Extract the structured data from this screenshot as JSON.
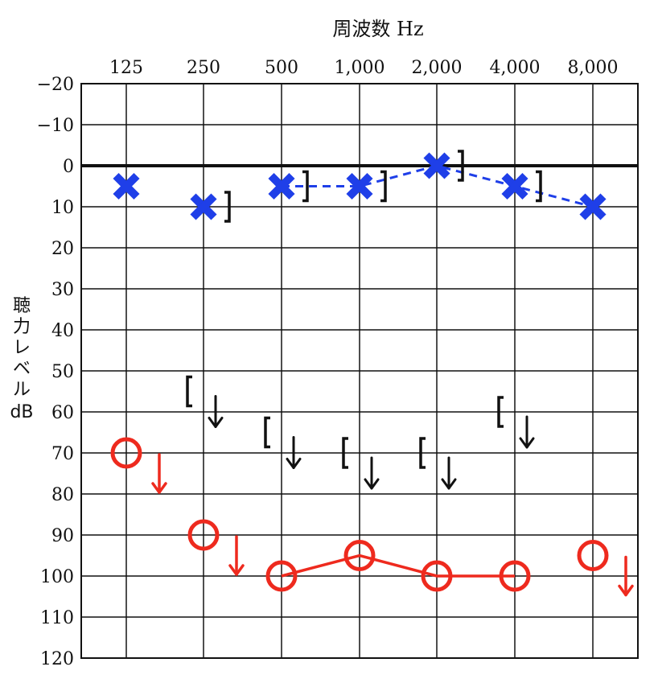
{
  "chart_data": {
    "type": "scatter",
    "title": "",
    "xlabel": "周波数 Hz",
    "ylabel": "聴力レベル",
    "ylabel_unit": "dB",
    "x_categories": [
      "125",
      "250",
      "500",
      "1,000",
      "2,000",
      "4,000",
      "8,000"
    ],
    "y_ticks": [
      "−20",
      "−10",
      "0",
      "10",
      "20",
      "30",
      "40",
      "50",
      "60",
      "70",
      "80",
      "90",
      "100",
      "110",
      "120"
    ],
    "ylim": [
      -20,
      120
    ],
    "y_inverted": true,
    "grid": true,
    "series": [
      {
        "symbol": "X",
        "color": "#1f3fe8",
        "line": "dashed",
        "points": [
          {
            "x": "125",
            "y": 5,
            "connected": false
          },
          {
            "x": "250",
            "y": 10,
            "connected": false
          },
          {
            "x": "500",
            "y": 5,
            "connected": true
          },
          {
            "x": "1,000",
            "y": 5,
            "connected": true
          },
          {
            "x": "2,000",
            "y": 0,
            "connected": true
          },
          {
            "x": "4,000",
            "y": 5,
            "connected": true
          },
          {
            "x": "8,000",
            "y": 10,
            "connected": true
          }
        ]
      },
      {
        "symbol": "O",
        "color": "#ee2a1e",
        "line": "solid",
        "points": [
          {
            "x": "125",
            "y": 70,
            "connected": false,
            "no_response": true
          },
          {
            "x": "250",
            "y": 90,
            "connected": false,
            "no_response": true
          },
          {
            "x": "500",
            "y": 100,
            "connected": true
          },
          {
            "x": "1,000",
            "y": 95,
            "connected": true
          },
          {
            "x": "2,000",
            "y": 100,
            "connected": true
          },
          {
            "x": "4,000",
            "y": 100,
            "connected": true
          },
          {
            "x": "8,000",
            "y": 95,
            "connected": false,
            "no_response": true
          }
        ]
      },
      {
        "symbol": "]",
        "color": "#111111",
        "line": "none",
        "points": [
          {
            "x": "250",
            "y": 10
          },
          {
            "x": "500",
            "y": 5
          },
          {
            "x": "1,000",
            "y": 5
          },
          {
            "x": "2,000",
            "y": 0
          },
          {
            "x": "4,000",
            "y": 5
          }
        ]
      },
      {
        "symbol": "[",
        "color": "#111111",
        "line": "none",
        "points": [
          {
            "x": "250",
            "y": 55,
            "no_response": true
          },
          {
            "x": "500",
            "y": 65,
            "no_response": true
          },
          {
            "x": "1,000",
            "y": 70,
            "no_response": true
          },
          {
            "x": "2,000",
            "y": 70,
            "no_response": true
          },
          {
            "x": "4,000",
            "y": 60,
            "no_response": true
          }
        ]
      }
    ]
  }
}
